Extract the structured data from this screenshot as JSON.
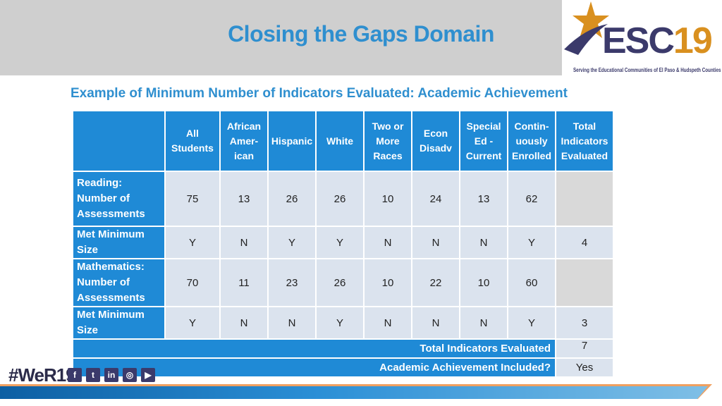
{
  "slide": {
    "title": "Closing the Gaps Domain",
    "subtitle": "Example of Minimum Number of Indicators Evaluated: Academic Achievement"
  },
  "logo": {
    "text_esc": "ESC",
    "text_num": "19",
    "tagline": "Serving the Educational Communities of El Paso & Hudspeth Counties"
  },
  "table": {
    "headers": [
      "All Students",
      "African Amer-ican",
      "Hispanic",
      "White",
      "Two or More Races",
      "Econ Disadv",
      "Special Ed - Current",
      "Contin-uously Enrolled",
      "Total Indicators Evaluated"
    ],
    "headers_lines": [
      [
        "All",
        "Students"
      ],
      [
        "African",
        "Amer-",
        "ican"
      ],
      [
        "Hispanic"
      ],
      [
        "White"
      ],
      [
        "Two or",
        "More",
        "Races"
      ],
      [
        "Econ",
        "Disadv"
      ],
      [
        "Special",
        "Ed -",
        "Current"
      ],
      [
        "Contin-",
        "uously",
        "Enrolled"
      ],
      [
        "Total",
        "Indicators",
        "Evaluated"
      ]
    ],
    "rows": [
      {
        "label_lines": [
          "Reading:",
          "Number of",
          "Assessments"
        ],
        "values": [
          "75",
          "13",
          "26",
          "26",
          "10",
          "24",
          "13",
          "62",
          ""
        ]
      },
      {
        "label_lines": [
          "Met Minimum",
          "Size"
        ],
        "values": [
          "Y",
          "N",
          "Y",
          "Y",
          "N",
          "N",
          "N",
          "Y",
          "4"
        ]
      },
      {
        "label_lines": [
          "Mathematics:",
          "Number of",
          "Assessments"
        ],
        "values": [
          "70",
          "11",
          "23",
          "26",
          "10",
          "22",
          "10",
          "60",
          ""
        ]
      },
      {
        "label_lines": [
          "Met Minimum",
          "Size"
        ],
        "values": [
          "Y",
          "N",
          "N",
          "Y",
          "N",
          "N",
          "N",
          "Y",
          "3"
        ]
      }
    ],
    "footer": [
      {
        "label": "Total Indicators Evaluated",
        "value": "7"
      },
      {
        "label": "Academic Achievement Included?",
        "value": "Yes"
      }
    ]
  },
  "footer": {
    "hashtag": "#WeR19",
    "social_icons": [
      "facebook-icon",
      "twitter-icon",
      "linkedin-icon",
      "instagram-icon",
      "youtube-icon"
    ],
    "social_glyphs": [
      "f",
      "t",
      "in",
      "◎",
      "▶"
    ]
  },
  "colors": {
    "title": "#2f8fcf",
    "header_bg": "#1f8ad6",
    "cell_bg": "#dbe3ee",
    "logo_navy": "#3b3a6b",
    "logo_gold": "#d9901f"
  }
}
